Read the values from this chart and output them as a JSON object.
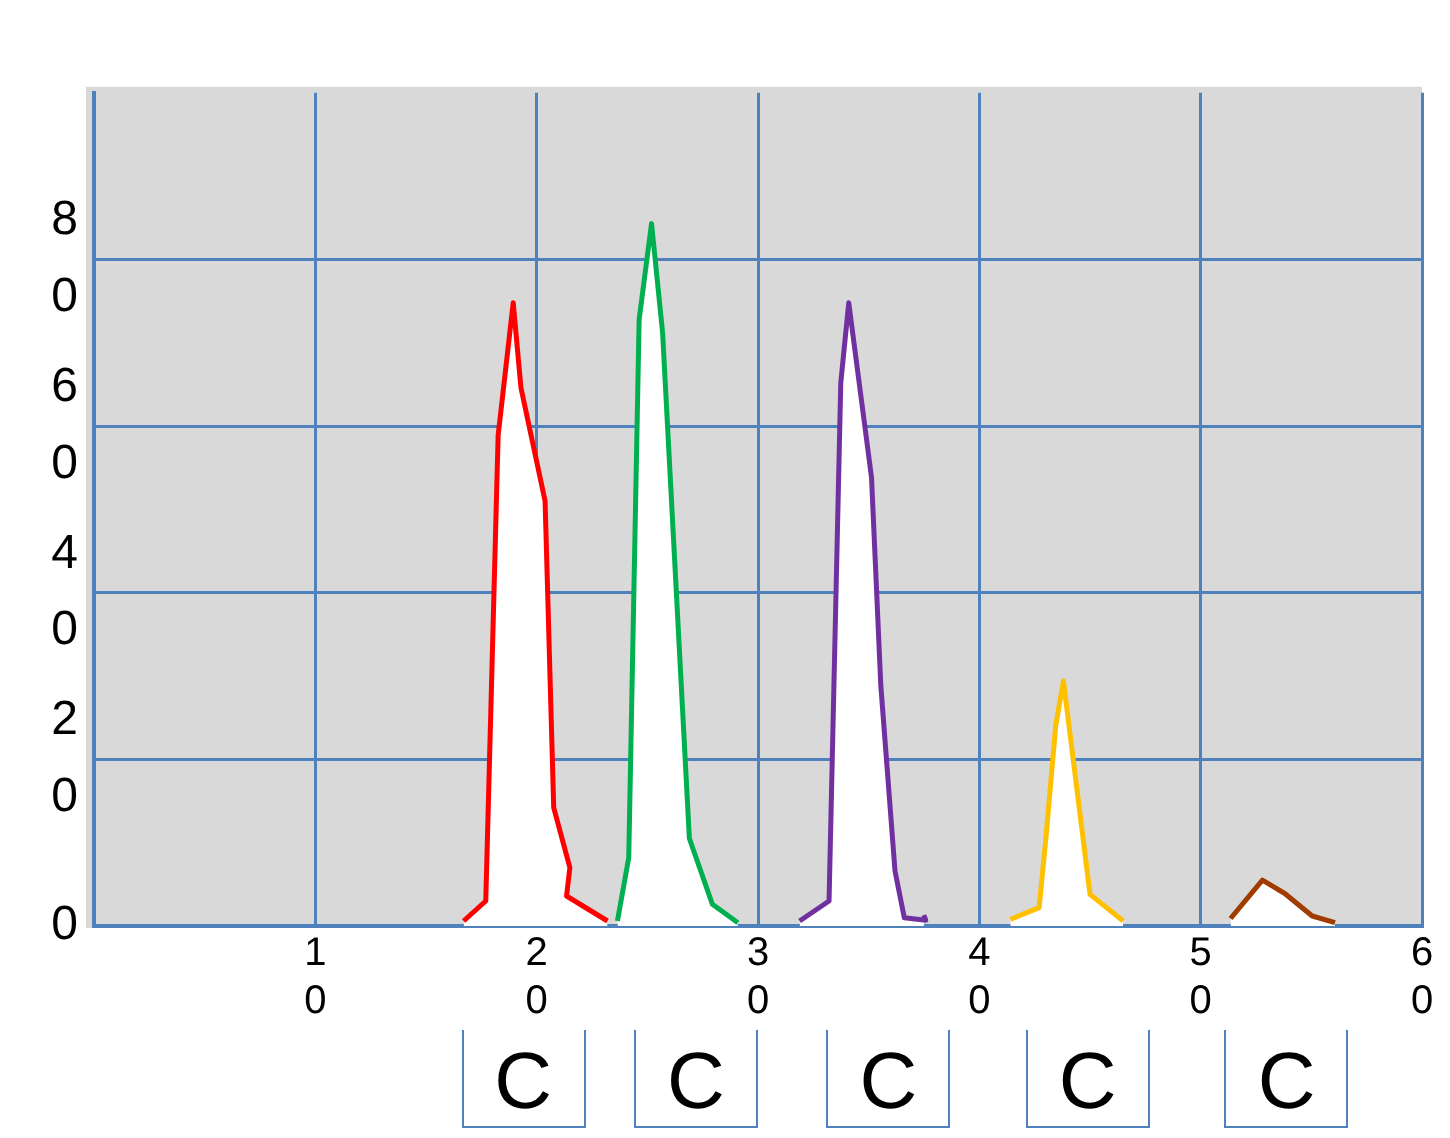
{
  "chart_data": {
    "type": "area",
    "xlim": [
      0,
      60
    ],
    "xticks": [
      10,
      20,
      30,
      40,
      50,
      60
    ],
    "ylim": [
      0,
      100
    ],
    "yticks": [
      0,
      20,
      40,
      60,
      80
    ],
    "grid": true,
    "legend": false,
    "series": [
      {
        "color": "#ff0000",
        "x": [
          16.7,
          17.7,
          18.26,
          18.94,
          19.29,
          20.38,
          20.77,
          21.5,
          21.35,
          23.2
        ],
        "values": [
          0.6,
          3,
          58.9,
          74.8,
          64.6,
          51,
          14.2,
          7,
          3.6,
          0.6
        ]
      },
      {
        "color": "#00b050",
        "x": [
          23.65,
          24.16,
          24.63,
          25.19,
          25.69,
          26.9,
          27.94,
          29.09
        ],
        "values": [
          0.6,
          8.2,
          72.8,
          84.3,
          71.2,
          10.5,
          2.6,
          0.4
        ]
      },
      {
        "color": "#7030a0",
        "x": [
          31.88,
          33.21,
          33.74,
          34.1,
          35.13,
          35.55,
          36.19,
          36.61,
          37.58,
          37.49
        ],
        "values": [
          0.6,
          3,
          65.2,
          74.8,
          53.8,
          28.8,
          6.6,
          1,
          0.7,
          1.3
        ]
      },
      {
        "color": "#ffc000",
        "x": [
          41.4,
          42.7,
          43,
          43.45,
          43.8,
          45,
          46.5
        ],
        "values": [
          0.8,
          2.2,
          10.3,
          24,
          29.4,
          3.8,
          0.6
        ]
      },
      {
        "color": "#a03c00",
        "x": [
          51.35,
          52.79,
          53.8,
          55.04,
          56.07
        ],
        "values": [
          0.9,
          5.5,
          3.9,
          1.2,
          0.4
        ]
      }
    ],
    "annotations": [
      {
        "text": "C",
        "x": 19.3,
        "y": 0
      },
      {
        "text": "C",
        "x": 27.1,
        "y": 0
      },
      {
        "text": "C",
        "x": 35.8,
        "y": 0
      },
      {
        "text": "C",
        "x": 44.8,
        "y": 0
      },
      {
        "text": "C",
        "x": 53.8,
        "y": 0
      }
    ]
  }
}
